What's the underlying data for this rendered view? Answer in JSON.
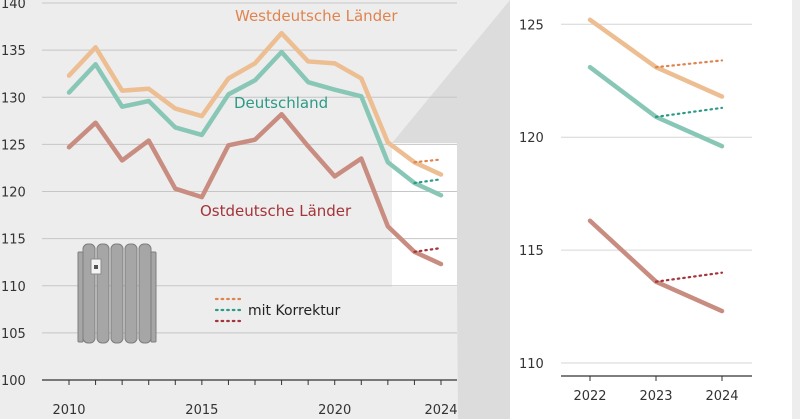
{
  "chart_data": [
    {
      "type": "line",
      "x": [
        2010,
        2011,
        2012,
        2013,
        2014,
        2015,
        2016,
        2017,
        2018,
        2019,
        2020,
        2021,
        2022,
        2023,
        2024
      ],
      "xticks": [
        2010,
        2015,
        2020,
        2024
      ],
      "ylim": [
        100,
        140
      ],
      "yticks": [
        100,
        105,
        110,
        115,
        120,
        125,
        130,
        135,
        140
      ],
      "series": [
        {
          "key": "west",
          "name": "Westdeutsche Länder",
          "color": "#ecbe91",
          "values": [
            132.3,
            135.3,
            130.7,
            130.9,
            128.8,
            128.0,
            132.0,
            133.6,
            136.8,
            133.8,
            133.6,
            132.0,
            125.2,
            123.1,
            121.8
          ],
          "korrektur": [
            [
              2023,
              123.1
            ],
            [
              2024,
              123.4
            ]
          ]
        },
        {
          "key": "de",
          "name": "Deutschland",
          "color": "#88c7b6",
          "values": [
            130.5,
            133.5,
            129.0,
            129.6,
            126.8,
            126.0,
            130.3,
            131.8,
            134.8,
            131.6,
            130.8,
            130.1,
            123.1,
            120.9,
            119.6
          ],
          "korrektur": [
            [
              2023,
              120.9
            ],
            [
              2024,
              121.3
            ]
          ]
        },
        {
          "key": "ost",
          "name": "Ostdeutsche Länder",
          "color": "#c88d80",
          "values": [
            124.7,
            127.3,
            123.3,
            125.4,
            120.3,
            119.4,
            124.9,
            125.5,
            128.2,
            124.8,
            121.6,
            123.5,
            116.3,
            113.6,
            112.3
          ],
          "korrektur": [
            [
              2023,
              113.6
            ],
            [
              2024,
              114.0
            ]
          ]
        }
      ],
      "legend": {
        "label": "mit Korrektur",
        "colors": [
          "#e0844f",
          "#2b9a87",
          "#a5343a"
        ]
      }
    },
    {
      "type": "line",
      "x": [
        2022,
        2023,
        2024
      ],
      "xticks": [
        2022,
        2023,
        2024
      ],
      "ylim": [
        110,
        125.5
      ],
      "yticks": [
        110,
        115,
        120,
        125
      ],
      "series": [
        {
          "key": "west",
          "values": [
            125.2,
            123.1,
            121.8
          ],
          "korrektur": [
            [
              2023,
              123.1
            ],
            [
              2024,
              123.4
            ]
          ]
        },
        {
          "key": "de",
          "values": [
            123.1,
            120.9,
            119.6
          ],
          "korrektur": [
            [
              2023,
              120.9
            ],
            [
              2024,
              121.3
            ]
          ]
        },
        {
          "key": "ost",
          "values": [
            116.3,
            113.6,
            112.3
          ],
          "korrektur": [
            [
              2023,
              113.6
            ],
            [
              2024,
              114.0
            ]
          ]
        }
      ]
    }
  ],
  "labels": {
    "west": "Westdeutsche Länder",
    "de": "Deutschland",
    "ost": "Ostdeutsche Länder",
    "legend": "mit Korrektur"
  },
  "colors": {
    "west": "#e0844f",
    "de": "#2b9a87",
    "ost": "#a5343a",
    "background": "#ededed",
    "panel": "#ffffff",
    "axis": "#333333",
    "radiator": "#a6a6a6"
  },
  "icons": {
    "radiator": "radiator-icon"
  }
}
